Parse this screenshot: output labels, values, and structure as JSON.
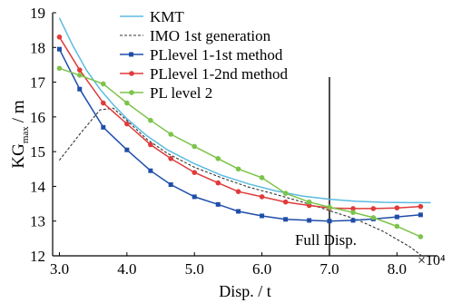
{
  "chart_data": {
    "type": "line",
    "title": "",
    "xlabel": "Disp. / t",
    "ylabel_main": "KG",
    "ylabel_sub": "max",
    "ylabel_unit": "/ m",
    "x_multiplier": "×10⁴",
    "xlim": [
      2.9,
      8.6
    ],
    "ylim": [
      12,
      19
    ],
    "xticks": [
      3.0,
      4.0,
      5.0,
      6.0,
      7.0,
      8.0
    ],
    "xtick_labels": [
      "3.0",
      "4.0",
      "5.0",
      "6.0",
      "7.0",
      "8.0"
    ],
    "yticks": [
      12,
      13,
      14,
      15,
      16,
      17,
      18,
      19
    ],
    "ytick_labels": [
      "12",
      "13",
      "14",
      "15",
      "16",
      "17",
      "18",
      "19"
    ],
    "grid": false,
    "legend_position": "top-center",
    "annotation": {
      "text": "Full Disp.",
      "x": 7.0
    },
    "series": [
      {
        "name": "KMT",
        "color": "#5bbbe0",
        "marker": "none",
        "dash": "solid",
        "x": [
          3.0,
          3.2,
          3.4,
          3.6,
          3.8,
          4.0,
          4.3,
          4.6,
          5.0,
          5.4,
          5.8,
          6.2,
          6.6,
          7.0,
          7.4,
          7.8,
          8.2,
          8.5
        ],
        "y": [
          18.85,
          18.05,
          17.35,
          16.8,
          16.35,
          15.95,
          15.45,
          15.05,
          14.65,
          14.32,
          14.07,
          13.87,
          13.72,
          13.63,
          13.57,
          13.54,
          13.53,
          13.53
        ]
      },
      {
        "name": "IMO 1st generation",
        "color": "#333333",
        "marker": "none",
        "dash": "dashed",
        "x": [
          3.0,
          3.3,
          3.6,
          3.8,
          4.0,
          4.3,
          4.6,
          5.0,
          5.4,
          5.8,
          6.2,
          6.6,
          7.0,
          7.4,
          7.8,
          8.2,
          8.4
        ],
        "y": [
          14.75,
          15.5,
          16.2,
          16.25,
          15.9,
          15.35,
          14.95,
          14.55,
          14.25,
          13.98,
          13.77,
          13.55,
          13.3,
          13.05,
          12.7,
          12.25,
          11.95
        ]
      },
      {
        "name": "PLlevel 1-1st method",
        "color": "#1f4ea8",
        "marker": "square",
        "dash": "solid",
        "x": [
          3.0,
          3.3,
          3.65,
          4.0,
          4.35,
          4.65,
          5.0,
          5.35,
          5.65,
          6.0,
          6.35,
          6.7,
          7.0,
          7.35,
          7.65,
          8.0,
          8.35
        ],
        "y": [
          17.95,
          16.8,
          15.7,
          15.05,
          14.45,
          14.05,
          13.7,
          13.48,
          13.28,
          13.15,
          13.05,
          13.02,
          13.0,
          13.02,
          13.06,
          13.12,
          13.18
        ]
      },
      {
        "name": "PLlevel 1-2nd method",
        "color": "#e03a3a",
        "marker": "circle",
        "dash": "solid",
        "x": [
          3.0,
          3.3,
          3.65,
          4.0,
          4.35,
          4.65,
          5.0,
          5.35,
          5.65,
          6.0,
          6.35,
          6.7,
          7.0,
          7.35,
          7.65,
          8.0,
          8.35
        ],
        "y": [
          18.3,
          17.35,
          16.4,
          15.8,
          15.2,
          14.8,
          14.4,
          14.1,
          13.85,
          13.7,
          13.55,
          13.45,
          13.38,
          13.36,
          13.36,
          13.38,
          13.42
        ]
      },
      {
        "name": "PL level 2",
        "color": "#7cc44a",
        "marker": "circle",
        "dash": "solid",
        "x": [
          3.0,
          3.3,
          3.65,
          4.0,
          4.35,
          4.65,
          5.0,
          5.35,
          5.65,
          6.0,
          6.35,
          6.7,
          7.0,
          7.35,
          7.65,
          8.0,
          8.35
        ],
        "y": [
          17.4,
          17.2,
          16.95,
          16.4,
          15.9,
          15.5,
          15.15,
          14.8,
          14.5,
          14.25,
          13.8,
          13.55,
          13.4,
          13.25,
          13.1,
          12.85,
          12.55
        ]
      }
    ]
  }
}
